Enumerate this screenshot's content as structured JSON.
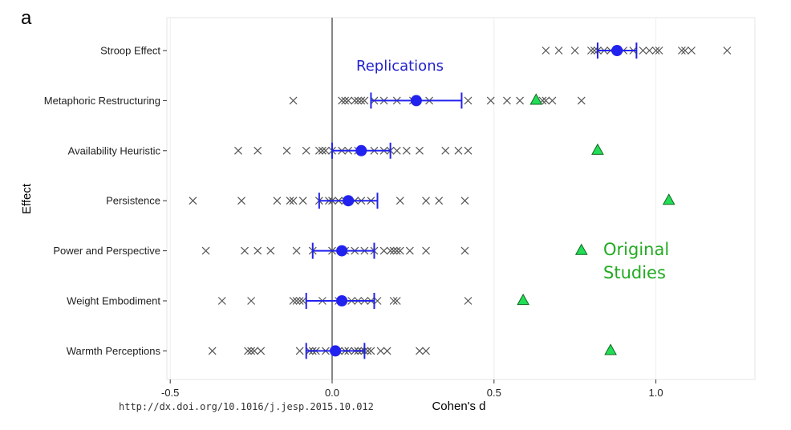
{
  "panel_label": "a",
  "doi": "http://dx.doi.org/10.1016/j.jesp.2015.10.012",
  "colors": {
    "replication_marker": "#555555",
    "mean_ci": "#2222ee",
    "original": "#22dd55",
    "original_edge": "#116622",
    "zero_line": "#444444",
    "grid": "#eeeeee",
    "annotation_blue": "#2222cc",
    "annotation_green": "#22aa22"
  },
  "chart_data": {
    "type": "scatter",
    "title": "",
    "xlabel": "Cohen's d",
    "ylabel": "Effect",
    "xlim": [
      -0.5,
      1.3
    ],
    "xticks": [
      -0.5,
      0.0,
      0.5,
      1.0
    ],
    "xtick_labels": [
      "-0.5",
      "0.0",
      "0.5",
      "1.0"
    ],
    "grid": "on",
    "reference_line_x": 0,
    "categories": [
      "Stroop Effect",
      "Metaphoric Restructuring",
      "Availability Heuristic",
      "Persistence",
      "Power and Perspective",
      "Weight Embodiment",
      "Warmth Perceptions"
    ],
    "annotations": {
      "replications": "Replications",
      "original_line1": "Original",
      "original_line2": "Studies"
    },
    "effects": [
      {
        "name": "Stroop Effect",
        "replications": [
          0.66,
          0.7,
          0.75,
          0.8,
          0.81,
          0.82,
          0.84,
          0.86,
          0.9,
          0.93,
          0.96,
          0.98,
          1.0,
          1.01,
          1.08,
          1.09,
          1.11,
          1.22
        ],
        "mean": 0.88,
        "ci": [
          0.82,
          0.94
        ],
        "original": null
      },
      {
        "name": "Metaphoric Restructuring",
        "replications": [
          -0.12,
          0.03,
          0.04,
          0.05,
          0.07,
          0.08,
          0.09,
          0.1,
          0.13,
          0.16,
          0.2,
          0.25,
          0.3,
          0.42,
          0.49,
          0.54,
          0.58,
          0.65,
          0.66,
          0.68,
          0.77
        ],
        "mean": 0.26,
        "ci": [
          0.12,
          0.4
        ],
        "original": 0.63
      },
      {
        "name": "Availability Heuristic",
        "replications": [
          -0.29,
          -0.23,
          -0.14,
          -0.08,
          -0.04,
          -0.03,
          -0.02,
          0.0,
          0.03,
          0.05,
          0.08,
          0.13,
          0.16,
          0.18,
          0.2,
          0.23,
          0.27,
          0.35,
          0.39,
          0.42
        ],
        "mean": 0.09,
        "ci": [
          0.0,
          0.18
        ],
        "original": 0.82
      },
      {
        "name": "Persistence",
        "replications": [
          -0.43,
          -0.28,
          -0.17,
          -0.13,
          -0.12,
          -0.09,
          -0.04,
          -0.01,
          0.0,
          0.02,
          0.04,
          0.07,
          0.09,
          0.12,
          0.21,
          0.29,
          0.33,
          0.41
        ],
        "mean": 0.05,
        "ci": [
          -0.04,
          0.14
        ],
        "original": 1.04
      },
      {
        "name": "Power and Perspective",
        "replications": [
          -0.39,
          -0.27,
          -0.23,
          -0.19,
          -0.11,
          -0.06,
          0.0,
          0.04,
          0.07,
          0.1,
          0.13,
          0.16,
          0.18,
          0.19,
          0.2,
          0.21,
          0.24,
          0.29,
          0.41
        ],
        "mean": 0.03,
        "ci": [
          -0.06,
          0.13
        ],
        "original": 0.77
      },
      {
        "name": "Weight Embodiment",
        "replications": [
          -0.34,
          -0.25,
          -0.12,
          -0.11,
          -0.1,
          -0.09,
          -0.03,
          0.02,
          0.06,
          0.08,
          0.1,
          0.12,
          0.14,
          0.19,
          0.2,
          0.42
        ],
        "mean": 0.03,
        "ci": [
          -0.08,
          0.13
        ],
        "original": 0.59
      },
      {
        "name": "Warmth Perceptions",
        "replications": [
          -0.37,
          -0.26,
          -0.25,
          -0.24,
          -0.22,
          -0.1,
          -0.07,
          -0.06,
          -0.05,
          -0.02,
          0.02,
          0.04,
          0.05,
          0.07,
          0.08,
          0.09,
          0.1,
          0.11,
          0.12,
          0.15,
          0.17,
          0.27,
          0.29
        ],
        "mean": 0.01,
        "ci": [
          -0.08,
          0.1
        ],
        "original": 0.86
      }
    ]
  }
}
